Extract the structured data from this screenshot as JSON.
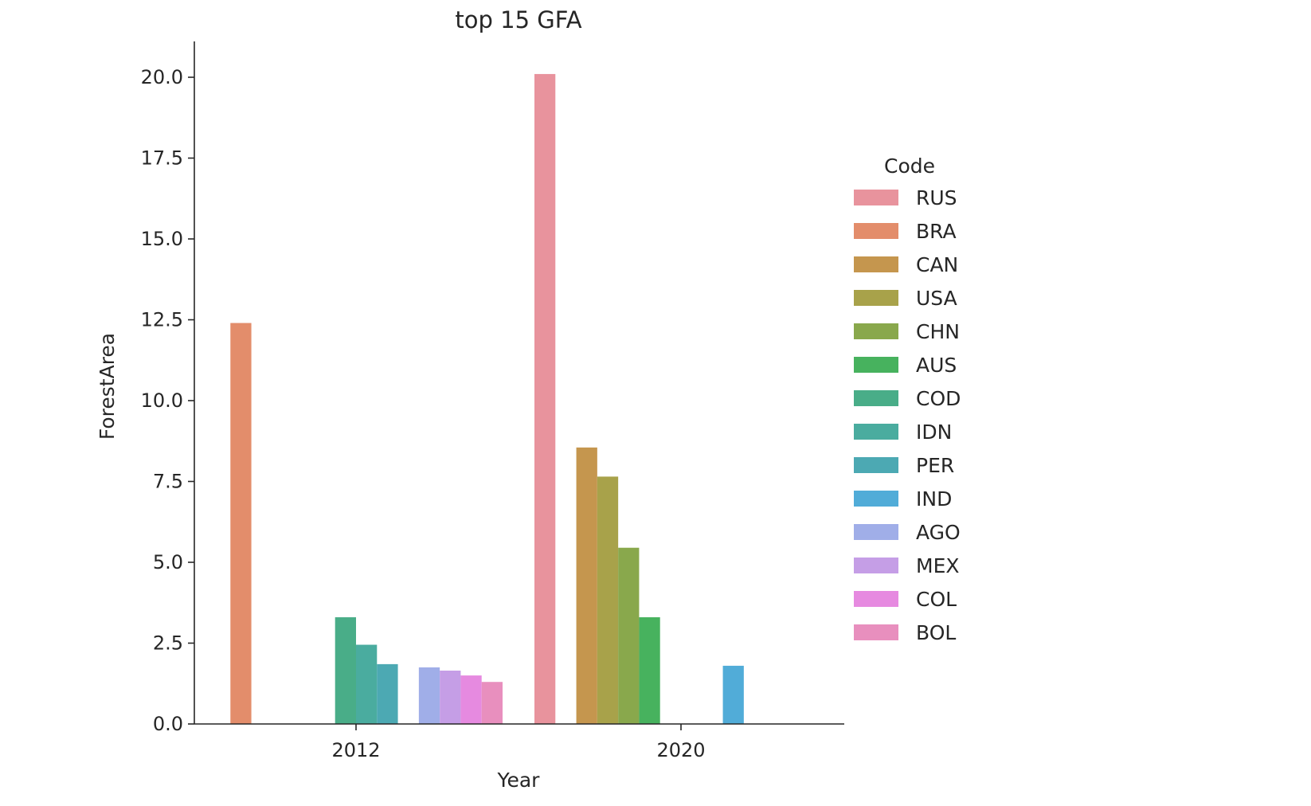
{
  "chart_data": {
    "type": "bar",
    "title": "top 15 GFA",
    "xlabel": "Year",
    "ylabel": "ForestArea",
    "ylim": [
      0,
      21.1
    ],
    "yticks": [
      "0.0",
      "2.5",
      "5.0",
      "7.5",
      "10.0",
      "12.5",
      "15.0",
      "17.5",
      "20.0"
    ],
    "categories": [
      "2012",
      "2020"
    ],
    "grid": false,
    "legend": {
      "title": "Code",
      "placement": "right"
    },
    "series": [
      {
        "name": "RUS",
        "color": "#e8939d",
        "values": [
          null,
          20.1
        ]
      },
      {
        "name": "BRA",
        "color": "#e38d6b",
        "values": [
          12.4,
          null
        ]
      },
      {
        "name": "CAN",
        "color": "#c5964e",
        "values": [
          null,
          8.55
        ]
      },
      {
        "name": "USA",
        "color": "#a8a24a",
        "values": [
          null,
          7.65
        ]
      },
      {
        "name": "CHN",
        "color": "#89a84c",
        "values": [
          null,
          5.45
        ]
      },
      {
        "name": "AUS",
        "color": "#47b25e",
        "values": [
          null,
          3.3
        ]
      },
      {
        "name": "COD",
        "color": "#49ad88",
        "values": [
          3.3,
          null
        ]
      },
      {
        "name": "IDN",
        "color": "#4aac9f",
        "values": [
          2.45,
          null
        ]
      },
      {
        "name": "PER",
        "color": "#4ca9b3",
        "values": [
          1.85,
          null
        ]
      },
      {
        "name": "IND",
        "color": "#51acd8",
        "values": [
          null,
          1.8
        ]
      },
      {
        "name": "AGO",
        "color": "#a0aee8",
        "values": [
          1.75,
          null
        ]
      },
      {
        "name": "MEX",
        "color": "#c59ee6",
        "values": [
          1.65,
          null
        ]
      },
      {
        "name": "COL",
        "color": "#e68ae0",
        "values": [
          1.5,
          null
        ]
      },
      {
        "name": "BOL",
        "color": "#e88fbe",
        "values": [
          1.3,
          null
        ]
      }
    ]
  }
}
